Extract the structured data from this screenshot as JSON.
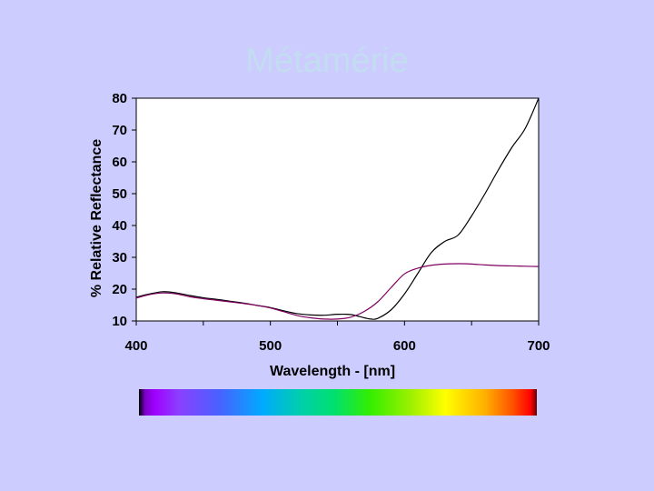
{
  "slide": {
    "title": "Métamérie"
  },
  "chart_data": {
    "type": "line",
    "title": "",
    "xlabel": "Wavelength - [nm]",
    "ylabel": "% Relative Reflectance",
    "xlim": [
      400,
      700
    ],
    "ylim": [
      10,
      80
    ],
    "xticks": [
      400,
      500,
      600,
      700
    ],
    "yticks": [
      10,
      20,
      30,
      40,
      50,
      60,
      70,
      80
    ],
    "grid": false,
    "legend": "none",
    "series": [
      {
        "color": "#000000",
        "x": [
          400,
          410,
          420,
          430,
          440,
          450,
          460,
          470,
          480,
          490,
          500,
          510,
          520,
          530,
          540,
          550,
          560,
          570,
          575,
          580,
          590,
          600,
          610,
          620,
          630,
          640,
          650,
          660,
          670,
          680,
          690,
          700
        ],
        "y": [
          17.5,
          18.5,
          19.2,
          18.8,
          18.0,
          17.3,
          16.8,
          16.2,
          15.6,
          14.9,
          14.2,
          13.2,
          12.3,
          11.9,
          11.8,
          12.1,
          12.0,
          11.0,
          10.6,
          10.8,
          13.5,
          18.5,
          25.0,
          31.5,
          35.0,
          37.0,
          43.0,
          50.0,
          57.5,
          64.5,
          70.5,
          80.0
        ]
      },
      {
        "color": "#800060",
        "x": [
          400,
          410,
          420,
          430,
          440,
          450,
          460,
          470,
          480,
          490,
          500,
          510,
          520,
          530,
          540,
          550,
          560,
          570,
          580,
          590,
          600,
          610,
          620,
          630,
          640,
          650,
          660,
          670,
          680,
          690,
          700
        ],
        "y": [
          17.2,
          18.3,
          18.8,
          18.5,
          17.6,
          17.0,
          16.5,
          16.0,
          15.5,
          14.9,
          14.1,
          12.9,
          11.7,
          11.0,
          10.6,
          10.6,
          11.2,
          13.0,
          16.0,
          20.5,
          24.8,
          26.6,
          27.5,
          27.9,
          28.0,
          27.9,
          27.6,
          27.4,
          27.3,
          27.2,
          27.1
        ]
      }
    ]
  }
}
